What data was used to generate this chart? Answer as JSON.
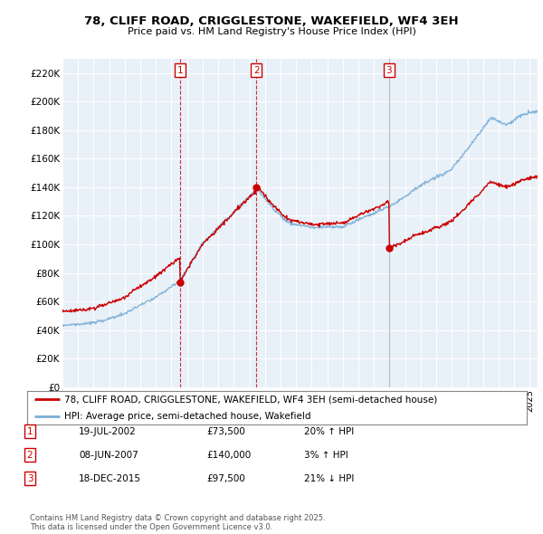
{
  "title": "78, CLIFF ROAD, CRIGGLESTONE, WAKEFIELD, WF4 3EH",
  "subtitle": "Price paid vs. HM Land Registry's House Price Index (HPI)",
  "ylabel_ticks": [
    "£0",
    "£20K",
    "£40K",
    "£60K",
    "£80K",
    "£100K",
    "£120K",
    "£140K",
    "£160K",
    "£180K",
    "£200K",
    "£220K"
  ],
  "ytick_values": [
    0,
    20000,
    40000,
    60000,
    80000,
    100000,
    120000,
    140000,
    160000,
    180000,
    200000,
    220000
  ],
  "ylim": [
    0,
    230000
  ],
  "xlim_start": 1995.0,
  "xlim_end": 2025.5,
  "sales": [
    {
      "date": 2002.54,
      "price": 73500,
      "label": "1",
      "vline_color": "#cc0000",
      "vline_style": "--"
    },
    {
      "date": 2007.44,
      "price": 140000,
      "label": "2",
      "vline_color": "#cc0000",
      "vline_style": "--"
    },
    {
      "date": 2015.96,
      "price": 97500,
      "label": "3",
      "vline_color": "#aaaaaa",
      "vline_style": "-"
    }
  ],
  "sale_marker_color": "#cc0000",
  "hpi_line_color": "#7aaed6",
  "price_line_color": "#cc0000",
  "legend_entries": [
    "78, CLIFF ROAD, CRIGGLESTONE, WAKEFIELD, WF4 3EH (semi-detached house)",
    "HPI: Average price, semi-detached house, Wakefield"
  ],
  "table_rows": [
    {
      "num": "1",
      "date": "19-JUL-2002",
      "price": "£73,500",
      "change": "20% ↑ HPI"
    },
    {
      "num": "2",
      "date": "08-JUN-2007",
      "price": "£140,000",
      "change": "3% ↑ HPI"
    },
    {
      "num": "3",
      "date": "18-DEC-2015",
      "price": "£97,500",
      "change": "21% ↓ HPI"
    }
  ],
  "footer": "Contains HM Land Registry data © Crown copyright and database right 2025.\nThis data is licensed under the Open Government Licence v3.0.",
  "background_color": "#ffffff",
  "plot_bg_color": "#e8f0f8",
  "grid_color": "#ffffff"
}
